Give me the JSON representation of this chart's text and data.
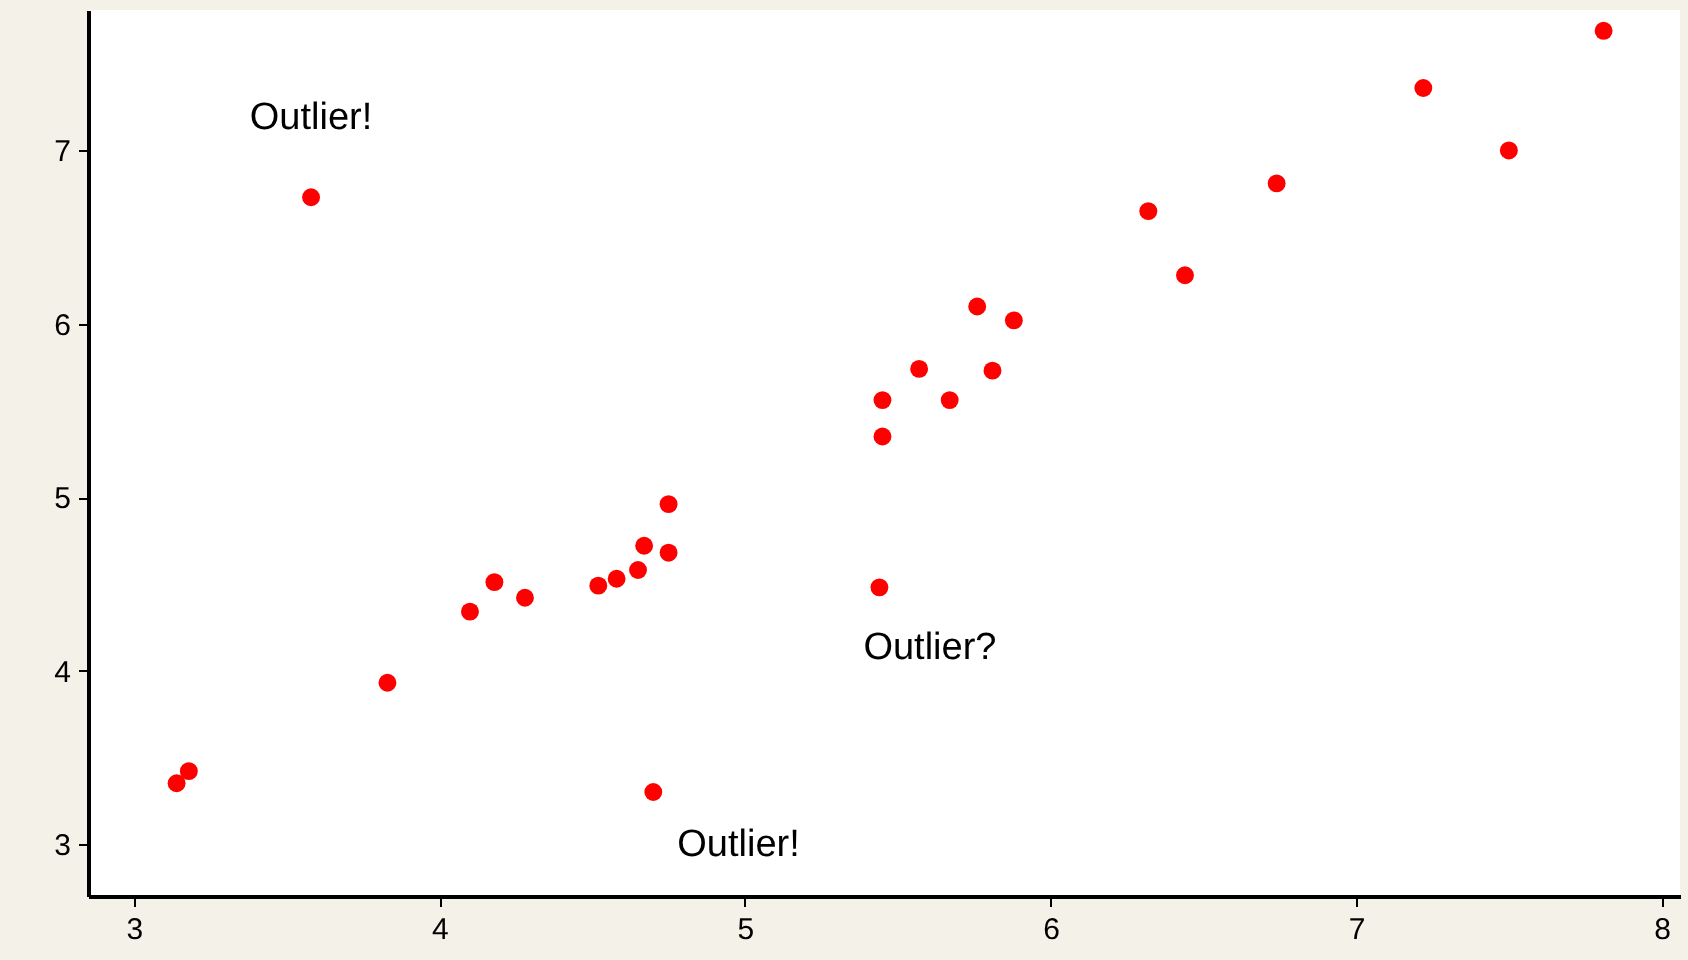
{
  "chart_data": {
    "type": "scatter",
    "marker": "circle",
    "grid": false,
    "xlim": [
      2.85,
      8.06
    ],
    "ylim": [
      2.7,
      7.81
    ],
    "xticks": [
      3,
      4,
      5,
      6,
      7,
      8
    ],
    "yticks": [
      3,
      4,
      5,
      6,
      7
    ],
    "series": [
      {
        "color": "#ff0000",
        "x": [
          3.14,
          3.18,
          3.58,
          3.83,
          4.1,
          4.18,
          4.28,
          4.52,
          4.58,
          4.65,
          4.67,
          4.75,
          4.75,
          4.7,
          5.44,
          5.45,
          5.45,
          5.57,
          5.67,
          5.76,
          5.81,
          5.88,
          6.32,
          6.44,
          6.74,
          7.22,
          7.5,
          7.81
        ],
        "values": [
          3.35,
          3.42,
          6.73,
          3.93,
          4.34,
          4.51,
          4.42,
          4.49,
          4.53,
          4.58,
          4.72,
          4.68,
          4.96,
          3.3,
          4.48,
          5.35,
          5.56,
          5.74,
          5.56,
          6.1,
          5.73,
          6.02,
          6.65,
          6.28,
          6.81,
          7.36,
          7.0,
          7.69
        ]
      }
    ],
    "annotations": [
      {
        "text": "Outlier!",
        "x": 3.58,
        "y": 6.73
      },
      {
        "text": "Outlier!",
        "x": 4.7,
        "y": 3.3
      },
      {
        "text": "Outlier?",
        "x": 5.44,
        "y": 4.48
      }
    ]
  }
}
